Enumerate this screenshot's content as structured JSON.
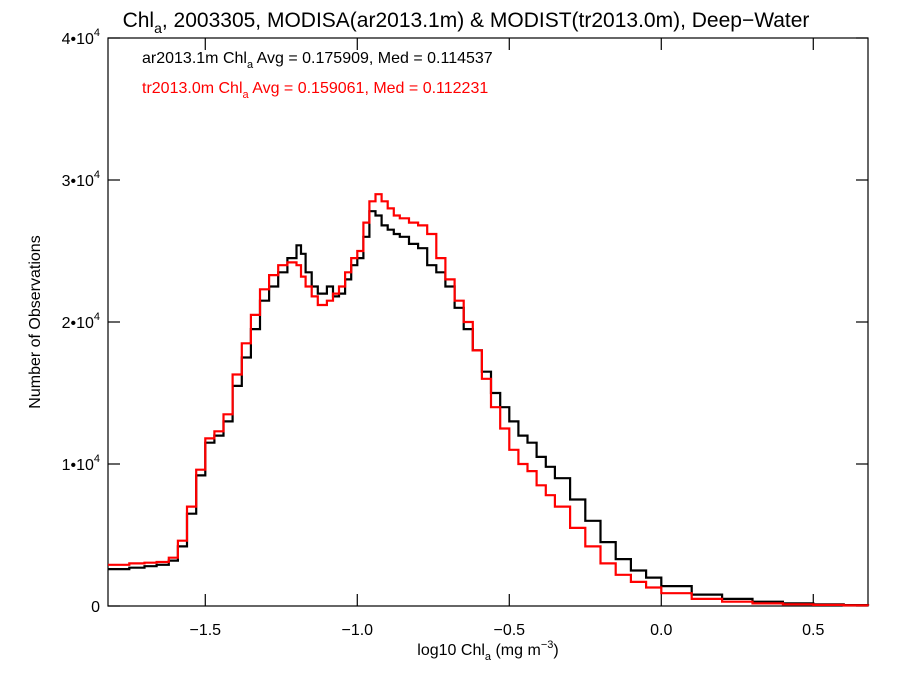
{
  "chart_data": {
    "type": "line",
    "title": {
      "before": "Chl",
      "sub": "a",
      "after": ", 2003305, MODISA(ar2013.1m) & MODIST(tr2013.0m), Deep−Water"
    },
    "xlabel": {
      "before": "log10 Chl",
      "sub": "a",
      "after": " (mg m",
      "sup": "−3",
      "end": ")"
    },
    "ylabel": "Number of Observations",
    "xlim": [
      -1.82,
      0.68
    ],
    "ylim": [
      0,
      40000
    ],
    "x_ticks": [
      {
        "value": -1.5,
        "label": "−1.5"
      },
      {
        "value": -1.0,
        "label": "−1.0"
      },
      {
        "value": -0.5,
        "label": "−0.5"
      },
      {
        "value": 0.0,
        "label": "0.0"
      },
      {
        "value": 0.5,
        "label": "0.5"
      }
    ],
    "y_ticks": [
      {
        "value": 0,
        "mant": "0",
        "exp": ""
      },
      {
        "value": 10000,
        "mant": "1•10",
        "exp": "4"
      },
      {
        "value": 20000,
        "mant": "2•10",
        "exp": "4"
      },
      {
        "value": 30000,
        "mant": "3•10",
        "exp": "4"
      },
      {
        "value": 40000,
        "mant": "4•10",
        "exp": "4"
      }
    ],
    "legend_position": "top-left",
    "series": [
      {
        "color": "#000000",
        "legend": {
          "before": "ar2013.1m Chl",
          "sub": "a",
          "after": " Avg = 0.175909, Med = 0.114537"
        },
        "x": [
          -1.82,
          -1.75,
          -1.7,
          -1.66,
          -1.62,
          -1.59,
          -1.56,
          -1.53,
          -1.5,
          -1.47,
          -1.44,
          -1.41,
          -1.38,
          -1.35,
          -1.32,
          -1.29,
          -1.26,
          -1.23,
          -1.2,
          -1.185,
          -1.17,
          -1.15,
          -1.13,
          -1.1,
          -1.08,
          -1.06,
          -1.04,
          -1.02,
          -1.0,
          -0.98,
          -0.96,
          -0.94,
          -0.92,
          -0.9,
          -0.88,
          -0.86,
          -0.83,
          -0.8,
          -0.77,
          -0.74,
          -0.71,
          -0.68,
          -0.65,
          -0.62,
          -0.59,
          -0.56,
          -0.53,
          -0.5,
          -0.47,
          -0.44,
          -0.41,
          -0.38,
          -0.35,
          -0.3,
          -0.25,
          -0.2,
          -0.15,
          -0.1,
          -0.05,
          0.0,
          0.1,
          0.2,
          0.3,
          0.4,
          0.5,
          0.6,
          0.68
        ],
        "y": [
          2600,
          2700,
          2800,
          2900,
          3200,
          4200,
          6500,
          9200,
          11500,
          12000,
          13000,
          15500,
          17500,
          19500,
          21500,
          22500,
          23500,
          24500,
          25400,
          24800,
          23500,
          22500,
          22000,
          22500,
          21800,
          22000,
          23000,
          24000,
          24500,
          26000,
          27800,
          27500,
          26800,
          26500,
          26200,
          26000,
          25500,
          25200,
          24000,
          23500,
          22500,
          21000,
          19500,
          18000,
          16500,
          15000,
          14000,
          13000,
          12000,
          11500,
          10500,
          9800,
          9000,
          7500,
          6000,
          4500,
          3300,
          2500,
          2000,
          1400,
          800,
          500,
          300,
          180,
          120,
          60,
          30
        ]
      },
      {
        "color": "#ff0000",
        "legend": {
          "before": "tr2013.0m Chl",
          "sub": "a",
          "after": " Avg = 0.159061, Med = 0.112231"
        },
        "x": [
          -1.82,
          -1.75,
          -1.7,
          -1.66,
          -1.62,
          -1.59,
          -1.56,
          -1.53,
          -1.5,
          -1.47,
          -1.44,
          -1.41,
          -1.38,
          -1.35,
          -1.32,
          -1.29,
          -1.26,
          -1.23,
          -1.2,
          -1.185,
          -1.17,
          -1.15,
          -1.13,
          -1.1,
          -1.08,
          -1.06,
          -1.04,
          -1.02,
          -1.0,
          -0.98,
          -0.96,
          -0.94,
          -0.92,
          -0.9,
          -0.88,
          -0.86,
          -0.83,
          -0.8,
          -0.77,
          -0.74,
          -0.71,
          -0.68,
          -0.65,
          -0.62,
          -0.59,
          -0.56,
          -0.53,
          -0.5,
          -0.47,
          -0.44,
          -0.41,
          -0.38,
          -0.35,
          -0.3,
          -0.25,
          -0.2,
          -0.15,
          -0.1,
          -0.05,
          0.0,
          0.1,
          0.2,
          0.3,
          0.4,
          0.5,
          0.6,
          0.68
        ],
        "y": [
          2900,
          3000,
          3050,
          3100,
          3400,
          4600,
          7000,
          9600,
          11800,
          12300,
          13500,
          16300,
          18500,
          20500,
          22300,
          23300,
          24000,
          24200,
          24000,
          23200,
          22500,
          21800,
          21200,
          21500,
          22000,
          22500,
          23500,
          24500,
          25000,
          27000,
          28500,
          29000,
          28500,
          28000,
          27500,
          27300,
          27000,
          26800,
          26200,
          24500,
          23000,
          21500,
          20000,
          18000,
          16000,
          14000,
          12500,
          11000,
          10000,
          9500,
          8500,
          7800,
          7000,
          5500,
          4200,
          3000,
          2200,
          1700,
          1300,
          900,
          500,
          300,
          180,
          120,
          80,
          40,
          20
        ]
      }
    ]
  }
}
